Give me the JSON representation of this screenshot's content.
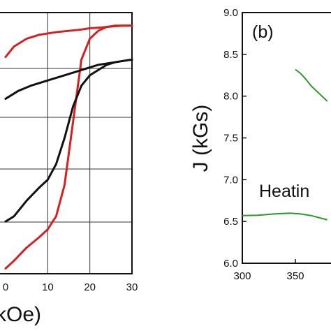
{
  "chart_data": [
    {
      "type": "line",
      "panel": "a",
      "xlabel": "kOe)",
      "ylabel": "",
      "x_ticks": [
        "0",
        "10",
        "20",
        "30"
      ],
      "x_tick_values": [
        0,
        10,
        20,
        30
      ],
      "xlim": [
        0,
        30
      ],
      "ylim": [
        0,
        1
      ],
      "grid": true,
      "colors": {
        "red": "#d42020",
        "black": "#111111"
      },
      "series": [
        {
          "color": "#d42020",
          "x": [
            0,
            2,
            5,
            8,
            10,
            12,
            15,
            18,
            20,
            22,
            24,
            26,
            28,
            30
          ],
          "y": [
            0.83,
            0.87,
            0.9,
            0.915,
            0.92,
            0.925,
            0.93,
            0.935,
            0.94,
            0.942,
            0.945,
            0.948,
            0.95,
            0.95
          ]
        },
        {
          "color": "#d42020",
          "x": [
            0,
            2,
            5,
            8,
            10,
            12,
            14,
            16,
            18,
            20,
            22,
            24,
            26,
            28,
            30
          ],
          "y": [
            0.02,
            0.05,
            0.1,
            0.14,
            0.17,
            0.22,
            0.34,
            0.58,
            0.82,
            0.9,
            0.93,
            0.945,
            0.95,
            0.95,
            0.95
          ]
        },
        {
          "color": "#111111",
          "x": [
            0,
            3,
            6,
            10,
            14,
            18,
            22,
            26,
            30
          ],
          "y": [
            0.67,
            0.7,
            0.72,
            0.74,
            0.76,
            0.78,
            0.8,
            0.81,
            0.82
          ]
        },
        {
          "color": "#111111",
          "x": [
            0,
            2,
            5,
            8,
            10,
            12,
            14,
            16,
            18,
            20,
            22,
            24,
            26,
            28,
            30
          ],
          "y": [
            0.2,
            0.22,
            0.28,
            0.33,
            0.36,
            0.42,
            0.52,
            0.64,
            0.72,
            0.76,
            0.78,
            0.8,
            0.81,
            0.815,
            0.82
          ]
        }
      ]
    },
    {
      "type": "line",
      "panel": "b",
      "panel_label": "(b)",
      "xlabel": "",
      "ylabel": "J (kGs)",
      "x_ticks": [
        "300",
        "350"
      ],
      "x_tick_values": [
        300,
        350
      ],
      "y_ticks": [
        "6.0",
        "6.5",
        "7.0",
        "7.5",
        "8.0",
        "8.5",
        "9.0"
      ],
      "y_tick_values": [
        6.0,
        6.5,
        7.0,
        7.5,
        8.0,
        8.5,
        9.0
      ],
      "xlim": [
        300,
        380
      ],
      "ylim": [
        6.0,
        9.0
      ],
      "grid": false,
      "annotation": "Heatin",
      "series": [
        {
          "color": "#2a9a2a",
          "x": [
            300,
            315,
            330,
            345,
            355,
            365,
            380
          ],
          "y": [
            6.57,
            6.575,
            6.59,
            6.6,
            6.59,
            6.57,
            6.52
          ]
        },
        {
          "color": "#2a9a2a",
          "x": [
            350,
            355,
            360,
            365,
            370,
            375,
            380
          ],
          "y": [
            8.32,
            8.27,
            8.2,
            8.12,
            8.06,
            8.0,
            7.94
          ]
        }
      ]
    }
  ]
}
